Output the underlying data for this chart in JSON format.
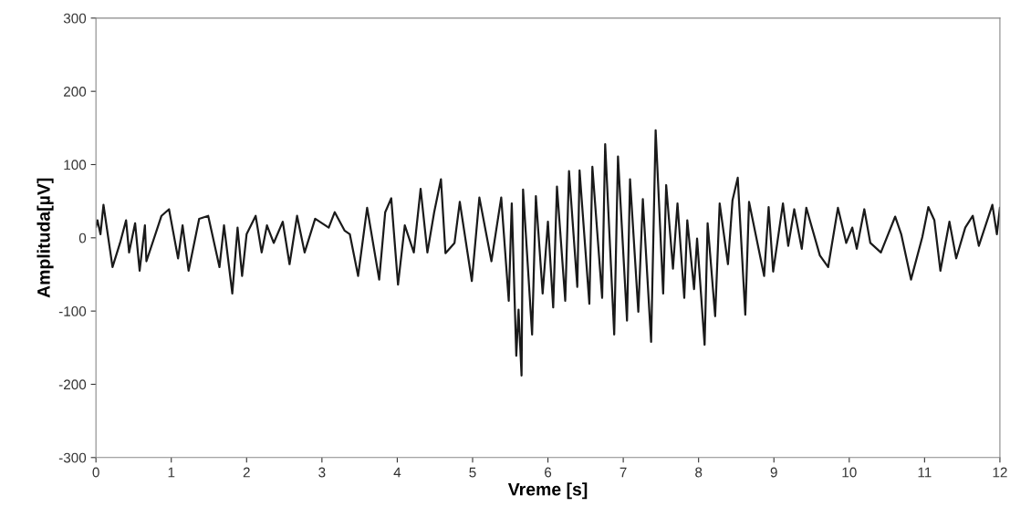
{
  "chart_data": {
    "type": "line",
    "xlabel": "Vreme [s]",
    "ylabel": "Amplituda[µV]",
    "xlim": [
      0,
      12
    ],
    "ylim": [
      -300,
      300
    ],
    "xticks": [
      0,
      1,
      2,
      3,
      4,
      5,
      6,
      7,
      8,
      9,
      10,
      11,
      12
    ],
    "yticks": [
      -300,
      -200,
      -100,
      0,
      100,
      200,
      300
    ],
    "grid": false,
    "legend": false,
    "marker": "none",
    "line_style": "solid",
    "series": [
      {
        "color": "#1a1a1a",
        "x": [
          0,
          0.02,
          0.06,
          0.1,
          0.22,
          0.32,
          0.4,
          0.44,
          0.52,
          0.58,
          0.65,
          0.67,
          0.87,
          0.97,
          1.09,
          1.15,
          1.23,
          1.37,
          1.49,
          1.64,
          1.7,
          1.81,
          1.88,
          1.94,
          2.0,
          2.12,
          2.2,
          2.27,
          2.36,
          2.48,
          2.57,
          2.67,
          2.77,
          2.91,
          3.09,
          3.17,
          3.3,
          3.37,
          3.48,
          3.6,
          3.76,
          3.84,
          3.92,
          4.01,
          4.1,
          4.22,
          4.31,
          4.4,
          4.49,
          4.58,
          4.64,
          4.76,
          4.83,
          4.99,
          5.09,
          5.25,
          5.38,
          5.48,
          5.52,
          5.58,
          5.61,
          5.65,
          5.67,
          5.79,
          5.84,
          5.93,
          6.0,
          6.07,
          6.12,
          6.23,
          6.28,
          6.39,
          6.42,
          6.55,
          6.59,
          6.72,
          6.76,
          6.88,
          6.93,
          7.05,
          7.09,
          7.2,
          7.26,
          7.37,
          7.43,
          7.53,
          7.57,
          7.66,
          7.72,
          7.81,
          7.85,
          7.94,
          7.98,
          8.08,
          8.12,
          8.22,
          8.28,
          8.39,
          8.45,
          8.52,
          8.62,
          8.67,
          8.87,
          8.93,
          8.99,
          9.12,
          9.19,
          9.27,
          9.37,
          9.43,
          9.61,
          9.72,
          9.85,
          9.96,
          10.04,
          10.1,
          10.2,
          10.28,
          10.42,
          10.61,
          10.69,
          10.82,
          10.97,
          11.05,
          11.13,
          11.21,
          11.33,
          11.42,
          11.54,
          11.64,
          11.72,
          11.9,
          11.96,
          12.0
        ],
        "values": [
          15,
          24,
          5,
          45,
          -40,
          -7,
          24,
          -20,
          20,
          -45,
          17,
          -32,
          30,
          39,
          -28,
          17,
          -45,
          26,
          30,
          -40,
          17,
          -76,
          14,
          -52,
          5,
          30,
          -20,
          17,
          -7,
          22,
          -36,
          30,
          -20,
          26,
          14,
          35,
          10,
          5,
          -52,
          41,
          -57,
          35,
          54,
          -64,
          17,
          -20,
          67,
          -20,
          35,
          80,
          -21,
          -7,
          49,
          -59,
          55,
          -32,
          55,
          -86,
          47,
          -161,
          -98,
          -188,
          66,
          -132,
          57,
          -76,
          22,
          -95,
          70,
          -86,
          91,
          -67,
          92,
          -90,
          97,
          -82,
          128,
          -132,
          111,
          -113,
          80,
          -101,
          53,
          -142,
          147,
          -76,
          72,
          -42,
          47,
          -82,
          24,
          -70,
          -1,
          -146,
          20,
          -107,
          47,
          -36,
          51,
          82,
          -105,
          49,
          -52,
          42,
          -46,
          47,
          -11,
          39,
          -15,
          41,
          -24,
          -40,
          41,
          -7,
          14,
          -15,
          39,
          -7,
          -20,
          29,
          5,
          -57,
          1,
          42,
          24,
          -45,
          22,
          -28,
          14,
          30,
          -11,
          45,
          5,
          41
        ]
      }
    ]
  }
}
